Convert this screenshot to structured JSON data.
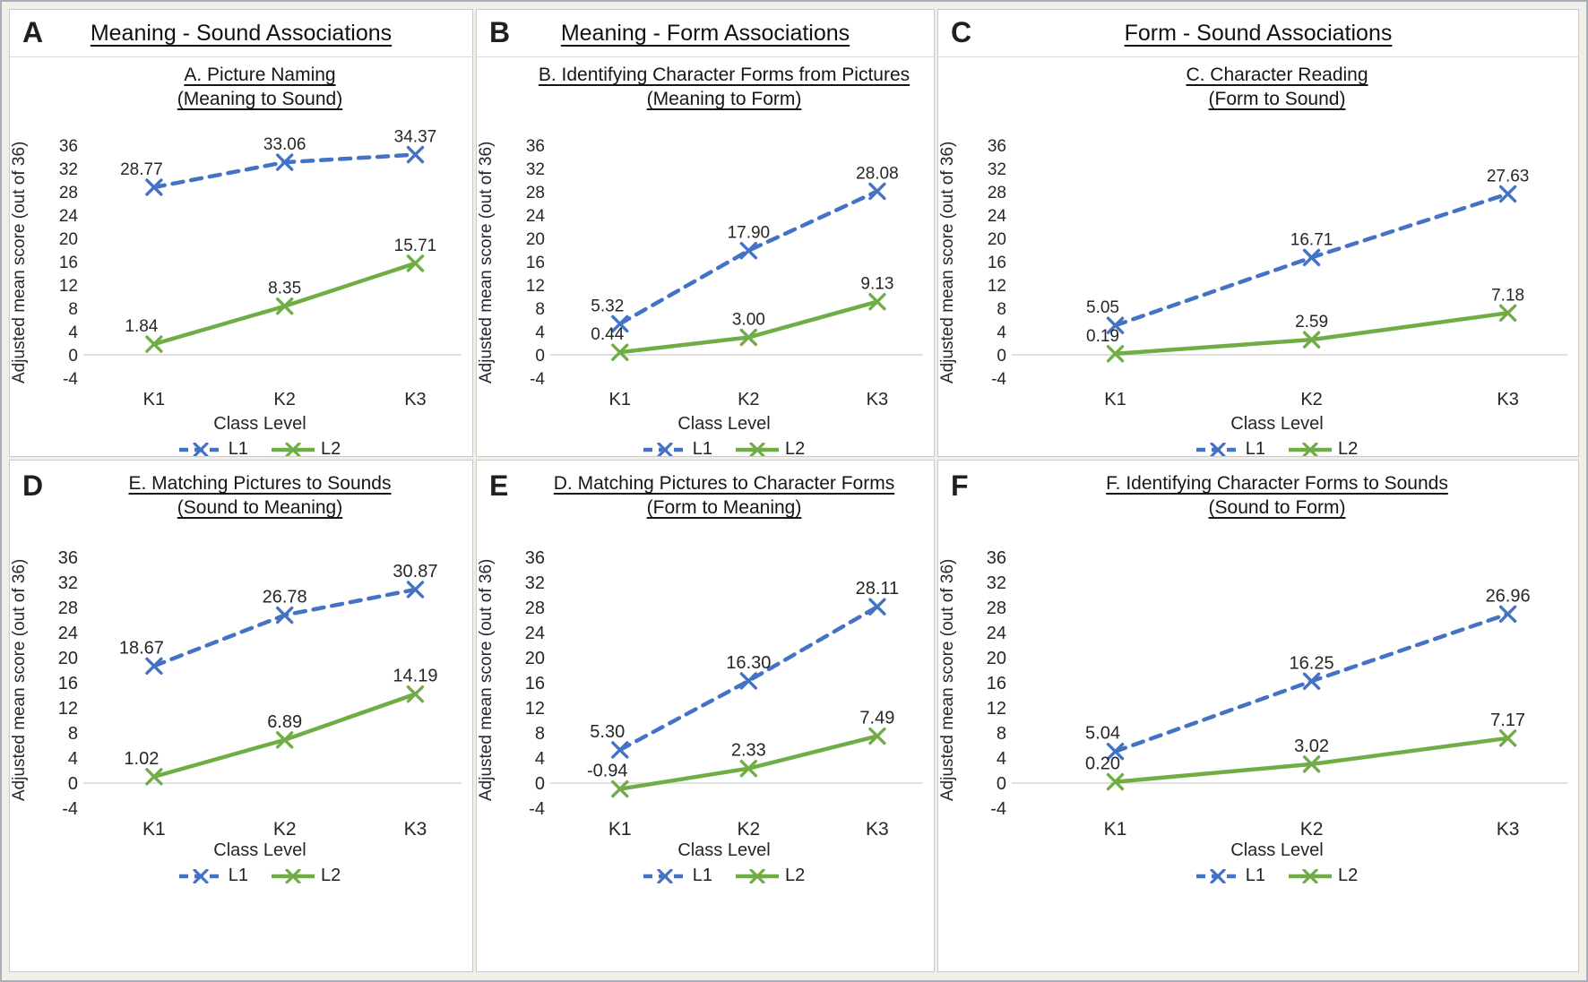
{
  "figure": {
    "y_axis_label": "Adjusted mean score (out of 36)",
    "x_axis_label": "Class Level",
    "y_ticks": [
      36,
      32,
      28,
      24,
      20,
      16,
      12,
      8,
      4,
      0,
      -4
    ],
    "ylim": [
      -4,
      36
    ],
    "categories": [
      "K1",
      "K2",
      "K3"
    ],
    "grid": "zero-line-only",
    "legend_position": "bottom",
    "legend": [
      {
        "name": "L1",
        "color": "#4472C4",
        "dash": true
      },
      {
        "name": "L2",
        "color": "#70AD47",
        "dash": false
      }
    ]
  },
  "chart_data": [
    {
      "type": "line",
      "panel": "A",
      "group_title": "Meaning - Sound Associations",
      "title": "A. Picture Naming",
      "subtitle": "(Meaning to Sound)",
      "xlabel": "Class Level",
      "ylabel": "Adjusted mean score (out of 36)",
      "categories": [
        "K1",
        "K2",
        "K3"
      ],
      "series": [
        {
          "name": "L1",
          "values": [
            28.77,
            33.06,
            34.37
          ]
        },
        {
          "name": "L2",
          "values": [
            1.84,
            8.35,
            15.71
          ]
        }
      ]
    },
    {
      "type": "line",
      "panel": "B",
      "group_title": "Meaning - Form Associations",
      "title": "B. Identifying Character Forms from Pictures",
      "subtitle": "(Meaning to Form)",
      "xlabel": "Class Level",
      "ylabel": "Adjusted mean score (out of 36)",
      "categories": [
        "K1",
        "K2",
        "K3"
      ],
      "series": [
        {
          "name": "L1",
          "values": [
            5.32,
            17.9,
            28.08
          ]
        },
        {
          "name": "L2",
          "values": [
            0.44,
            3.0,
            9.13
          ]
        }
      ]
    },
    {
      "type": "line",
      "panel": "C",
      "group_title": "Form - Sound Associations",
      "title": "C. Character Reading",
      "subtitle": "(Form to Sound)",
      "xlabel": "Class Level",
      "ylabel": "Adjusted mean score (out of 36)",
      "categories": [
        "K1",
        "K2",
        "K3"
      ],
      "series": [
        {
          "name": "L1",
          "values": [
            5.05,
            16.71,
            27.63
          ]
        },
        {
          "name": "L2",
          "values": [
            0.19,
            2.59,
            7.18
          ]
        }
      ]
    },
    {
      "type": "line",
      "panel": "D",
      "group_title": "",
      "title": "E. Matching Pictures to Sounds",
      "subtitle": "(Sound to Meaning)",
      "xlabel": "Class Level",
      "ylabel": "Adjusted mean score (out of 36)",
      "categories": [
        "K1",
        "K2",
        "K3"
      ],
      "series": [
        {
          "name": "L1",
          "values": [
            18.67,
            26.78,
            30.87
          ]
        },
        {
          "name": "L2",
          "values": [
            1.02,
            6.89,
            14.19
          ]
        }
      ]
    },
    {
      "type": "line",
      "panel": "E",
      "group_title": "",
      "title": "D. Matching Pictures to Character Forms",
      "subtitle": "(Form to Meaning)",
      "xlabel": "Class Level",
      "ylabel": "Adjusted mean score (out of 36)",
      "categories": [
        "K1",
        "K2",
        "K3"
      ],
      "series": [
        {
          "name": "L1",
          "values": [
            5.3,
            16.3,
            28.11
          ]
        },
        {
          "name": "L2",
          "values": [
            -0.94,
            2.33,
            7.49
          ]
        }
      ]
    },
    {
      "type": "line",
      "panel": "F",
      "group_title": "",
      "title": "F. Identifying Character Forms to Sounds",
      "subtitle": "(Sound to Form)",
      "xlabel": "Class Level",
      "ylabel": "Adjusted mean score (out of 36)",
      "categories": [
        "K1",
        "K2",
        "K3"
      ],
      "series": [
        {
          "name": "L1",
          "values": [
            5.04,
            16.25,
            26.96
          ]
        },
        {
          "name": "L2",
          "values": [
            0.2,
            3.02,
            7.17
          ]
        }
      ]
    }
  ]
}
